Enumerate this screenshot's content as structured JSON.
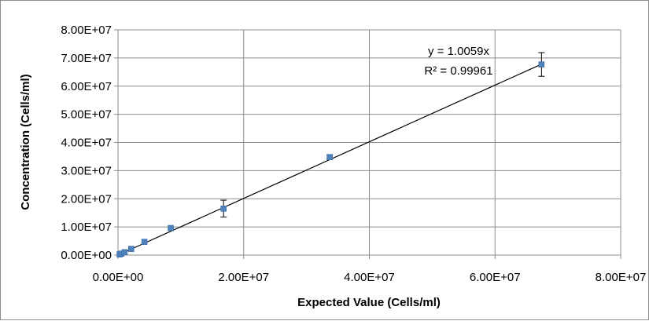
{
  "chart_data": {
    "type": "scatter",
    "xlabel": "Expected Value (Cells/ml)",
    "ylabel": "Concentration (Cells/ml)",
    "xlim": [
      0,
      80000000
    ],
    "ylim": [
      0,
      80000000
    ],
    "x_ticks": [
      0,
      20000000,
      40000000,
      60000000,
      80000000
    ],
    "x_tick_labels": [
      "0.00E+00",
      "2.00E+07",
      "4.00E+07",
      "6.00E+07",
      "8.00E+07"
    ],
    "y_ticks": [
      0,
      10000000,
      20000000,
      30000000,
      40000000,
      50000000,
      60000000,
      70000000,
      80000000
    ],
    "y_tick_labels": [
      "0.00E+00",
      "1.00E+07",
      "2.00E+07",
      "3.00E+07",
      "4.00E+07",
      "5.00E+07",
      "6.00E+07",
      "7.00E+07",
      "8.00E+07"
    ],
    "grid": true,
    "legend": "none",
    "series": [
      {
        "color": "#4f81bd",
        "points": [
          {
            "x": 260000,
            "y": 250000,
            "err": 0
          },
          {
            "x": 530000,
            "y": 500000,
            "err": 0
          },
          {
            "x": 1050000,
            "y": 1000000,
            "err": 0
          },
          {
            "x": 2100000,
            "y": 2200000,
            "err": 0
          },
          {
            "x": 4200000,
            "y": 4700000,
            "err": 0
          },
          {
            "x": 8400000,
            "y": 9600000,
            "err": 0
          },
          {
            "x": 16800000,
            "y": 16500000,
            "err": 3000000
          },
          {
            "x": 33700000,
            "y": 34800000,
            "err": 700000
          },
          {
            "x": 67400000,
            "y": 67700000,
            "err": 4200000
          }
        ]
      }
    ],
    "trendline": {
      "slope": 1.0059,
      "x_range": [
        0,
        67400000
      ],
      "color": "#000000",
      "equation_lines": [
        "y = 1.0059x",
        "R² = 0.99961"
      ]
    }
  }
}
